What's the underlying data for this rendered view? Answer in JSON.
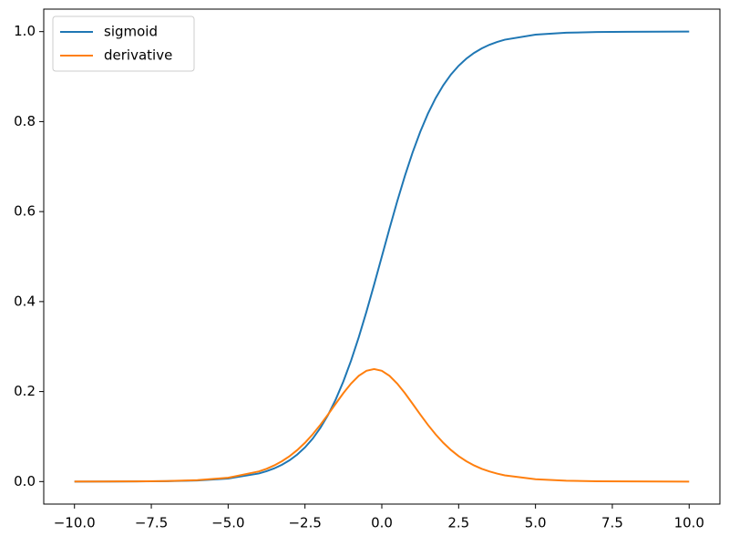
{
  "chart_data": {
    "type": "line",
    "x": [
      -10,
      -9,
      -8,
      -7,
      -6,
      -5,
      -4,
      -3.75,
      -3.5,
      -3.25,
      -3,
      -2.75,
      -2.5,
      -2.25,
      -2,
      -1.75,
      -1.5,
      -1.25,
      -1,
      -0.75,
      -0.5,
      -0.25,
      0,
      0.25,
      0.5,
      0.75,
      1,
      1.25,
      1.5,
      1.75,
      2,
      2.25,
      2.5,
      2.75,
      3,
      3.25,
      3.5,
      3.75,
      4,
      5,
      6,
      7,
      8,
      9,
      10
    ],
    "series": [
      {
        "name": "sigmoid",
        "color": "#1f77b4",
        "values": [
          0.0,
          0.0001,
          0.0003,
          0.0009,
          0.0025,
          0.0067,
          0.018,
          0.023,
          0.0293,
          0.0373,
          0.0474,
          0.0601,
          0.0759,
          0.0953,
          0.1192,
          0.148,
          0.1824,
          0.2227,
          0.2689,
          0.3208,
          0.3775,
          0.4378,
          0.5,
          0.5622,
          0.6225,
          0.6792,
          0.7311,
          0.7773,
          0.8176,
          0.852,
          0.8808,
          0.9047,
          0.9241,
          0.9399,
          0.9526,
          0.9627,
          0.9707,
          0.977,
          0.982,
          0.9933,
          0.9975,
          0.9991,
          0.9997,
          0.9999,
          1.0
        ]
      },
      {
        "name": "derivative",
        "color": "#ff7f0e",
        "values": [
          0.0001,
          0.0002,
          0.0004,
          0.0012,
          0.0032,
          0.0085,
          0.0225,
          0.0284,
          0.0359,
          0.0452,
          0.0565,
          0.0701,
          0.0862,
          0.105,
          0.1261,
          0.1491,
          0.1731,
          0.1966,
          0.2179,
          0.235,
          0.2461,
          0.25,
          0.2461,
          0.235,
          0.2179,
          0.1966,
          0.1731,
          0.1491,
          0.1261,
          0.105,
          0.0862,
          0.0701,
          0.0565,
          0.0452,
          0.0359,
          0.0284,
          0.0225,
          0.0177,
          0.0139,
          0.0052,
          0.0019,
          0.0007,
          0.0003,
          0.0001,
          0.0
        ]
      }
    ],
    "xlim": [
      -11,
      11
    ],
    "ylim": [
      -0.05,
      1.05
    ],
    "xticks": [
      {
        "value": -10,
        "label": "−10.0"
      },
      {
        "value": -7.5,
        "label": "−7.5"
      },
      {
        "value": -5,
        "label": "−5.0"
      },
      {
        "value": -2.5,
        "label": "−2.5"
      },
      {
        "value": 0,
        "label": "0.0"
      },
      {
        "value": 2.5,
        "label": "2.5"
      },
      {
        "value": 5,
        "label": "5.0"
      },
      {
        "value": 7.5,
        "label": "7.5"
      },
      {
        "value": 10,
        "label": "10.0"
      }
    ],
    "yticks": [
      {
        "value": 0,
        "label": "0.0"
      },
      0.2,
      0.4,
      0.6,
      0.8,
      {
        "value": 1,
        "label": "1.0"
      }
    ],
    "grid": false,
    "legend": "upper-left"
  }
}
